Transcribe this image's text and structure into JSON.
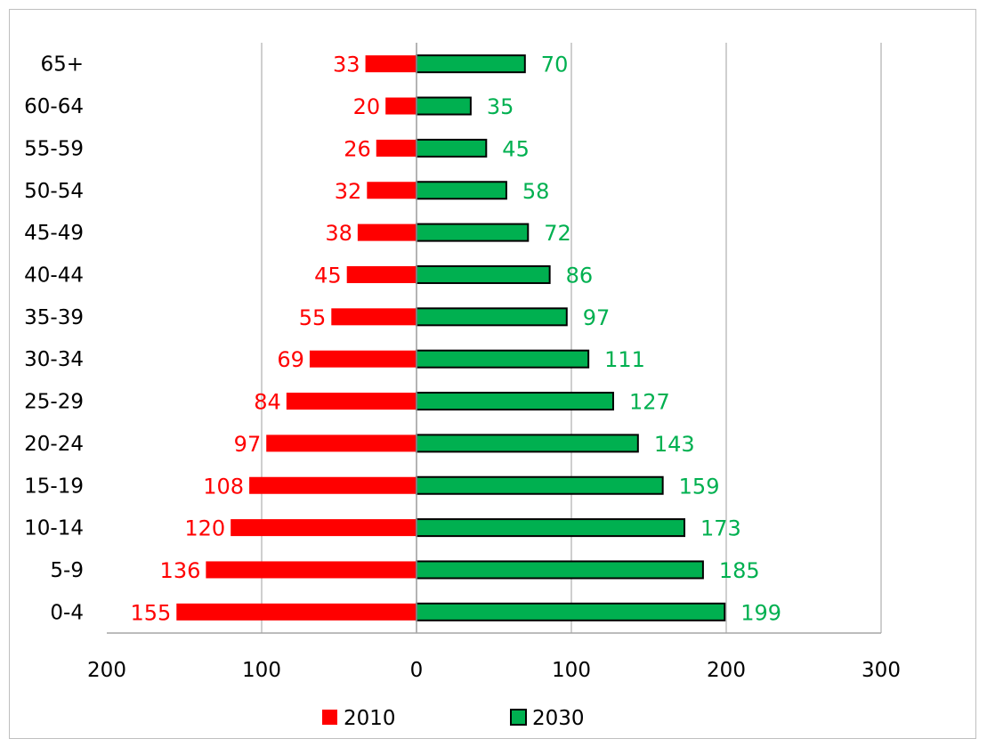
{
  "chart_data": {
    "type": "bar",
    "orientation": "horizontal",
    "style": "population-pyramid",
    "categories": [
      "0-4",
      "5-9",
      "10-14",
      "15-19",
      "20-24",
      "25-29",
      "30-34",
      "35-39",
      "40-44",
      "45-49",
      "50-54",
      "55-59",
      "60-64",
      "65+"
    ],
    "series": [
      {
        "name": "2010",
        "direction": "left",
        "color": "#ff0000",
        "label_color": "#ff0000",
        "outline": "none",
        "values": [
          155,
          136,
          120,
          108,
          97,
          84,
          69,
          55,
          45,
          38,
          32,
          26,
          20,
          33
        ]
      },
      {
        "name": "2030",
        "direction": "right",
        "color": "#00b050",
        "label_color": "#00b050",
        "outline": "#000000",
        "values": [
          199,
          185,
          173,
          159,
          143,
          127,
          111,
          97,
          86,
          72,
          58,
          45,
          35,
          70
        ]
      }
    ],
    "xlim": [
      -200,
      300
    ],
    "x_ticks": [
      -200,
      -100,
      0,
      100,
      200,
      300
    ],
    "x_tick_labels": [
      "200",
      "100",
      "0",
      "100",
      "200",
      "300"
    ],
    "title": "",
    "xlabel": "",
    "ylabel": "",
    "grid": "vertical",
    "legend": "bottom"
  }
}
